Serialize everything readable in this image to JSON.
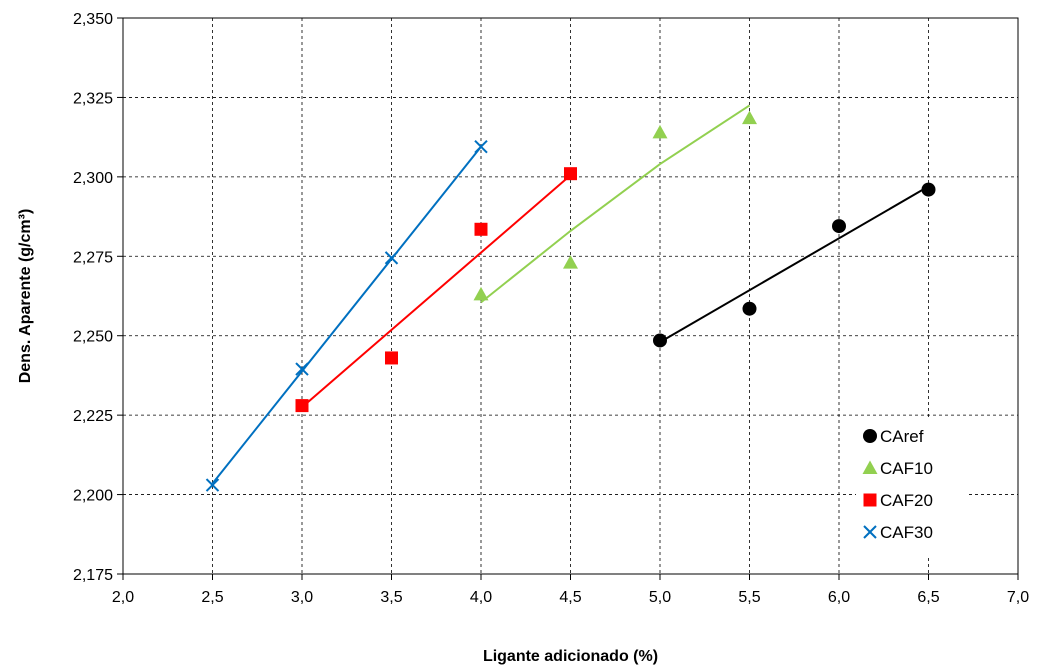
{
  "chart_data": {
    "type": "scatter",
    "title": "",
    "xlabel": "Ligante adicionado (%)",
    "ylabel": "Dens. Aparente (g/cm³)",
    "xlim": [
      2.0,
      7.0
    ],
    "ylim": [
      2.175,
      2.35
    ],
    "x_ticks": [
      "2,0",
      "2,5",
      "3,0",
      "3,5",
      "4,0",
      "4,5",
      "5,0",
      "5,5",
      "6,0",
      "6,5",
      "7,0"
    ],
    "y_ticks": [
      "2,175",
      "2,200",
      "2,225",
      "2,250",
      "2,275",
      "2,300",
      "2,325",
      "2,350"
    ],
    "grid": "dashed",
    "legend_position": "bottom-right",
    "series": [
      {
        "name": "CAref",
        "marker": "circle",
        "color": "#000000",
        "points": [
          [
            5.0,
            2.2485
          ],
          [
            5.5,
            2.2585
          ],
          [
            6.0,
            2.2845
          ],
          [
            6.5,
            2.296
          ]
        ],
        "trendline": [
          [
            5.0,
            2.248
          ],
          [
            6.5,
            2.297
          ]
        ]
      },
      {
        "name": "CAF10",
        "marker": "triangle",
        "color": "#92d050",
        "points": [
          [
            4.0,
            2.263
          ],
          [
            4.5,
            2.273
          ],
          [
            5.0,
            2.314
          ],
          [
            5.5,
            2.3185
          ]
        ],
        "trendline": [
          [
            4.0,
            2.2605
          ],
          [
            4.5,
            2.283
          ],
          [
            5.0,
            2.304
          ],
          [
            5.5,
            2.3225
          ]
        ]
      },
      {
        "name": "CAF20",
        "marker": "square",
        "color": "#ff0000",
        "points": [
          [
            3.0,
            2.228
          ],
          [
            3.5,
            2.243
          ],
          [
            4.0,
            2.2835
          ],
          [
            4.5,
            2.301
          ]
        ],
        "trendline": [
          [
            3.0,
            2.2275
          ],
          [
            4.5,
            2.3005
          ]
        ]
      },
      {
        "name": "CAF30",
        "marker": "x",
        "color": "#0070c0",
        "points": [
          [
            2.5,
            2.203
          ],
          [
            3.0,
            2.2395
          ],
          [
            3.5,
            2.2745
          ],
          [
            4.0,
            2.3095
          ]
        ],
        "trendline": [
          [
            2.5,
            2.2035
          ],
          [
            4.0,
            2.3095
          ]
        ]
      }
    ]
  }
}
